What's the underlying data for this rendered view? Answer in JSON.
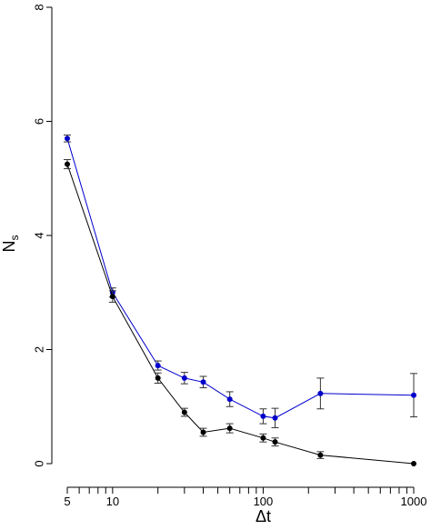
{
  "chart_data": {
    "type": "line",
    "xscale": "log",
    "xlim": [
      5,
      1000
    ],
    "ylim": [
      0,
      8
    ],
    "xlabel": "Δt",
    "ylabel_main": "N",
    "ylabel_sub": "s",
    "x_ticks_labeled": [
      5,
      10,
      100,
      1000
    ],
    "x_tick_labels": [
      "5",
      "10",
      "100",
      "1000"
    ],
    "x_ticks_minor": [
      6,
      7,
      8,
      9,
      20,
      30,
      40,
      50,
      60,
      70,
      80,
      90,
      200,
      300,
      400,
      500,
      600,
      700,
      800,
      900
    ],
    "y_ticks": [
      0,
      2,
      4,
      6,
      8
    ],
    "y_tick_labels": [
      "0",
      "2",
      "4",
      "6",
      "8"
    ],
    "grid": false,
    "legend": "none",
    "series": [
      {
        "color": "#0000cc",
        "x": [
          5,
          10,
          20,
          30,
          40,
          60,
          100,
          120,
          240,
          1000
        ],
        "y": [
          5.7,
          3.0,
          1.72,
          1.5,
          1.43,
          1.13,
          0.83,
          0.8,
          1.23,
          1.2
        ],
        "err": [
          0.06,
          0.08,
          0.08,
          0.1,
          0.1,
          0.13,
          0.13,
          0.17,
          0.27,
          0.38
        ]
      },
      {
        "color": "#000000",
        "x": [
          5,
          10,
          20,
          30,
          40,
          60,
          100,
          120,
          240,
          1000
        ],
        "y": [
          5.25,
          2.93,
          1.5,
          0.9,
          0.55,
          0.62,
          0.45,
          0.38,
          0.15,
          0.0
        ],
        "err": [
          0.08,
          0.1,
          0.09,
          0.07,
          0.07,
          0.08,
          0.07,
          0.07,
          0.06,
          0.0
        ]
      }
    ]
  }
}
